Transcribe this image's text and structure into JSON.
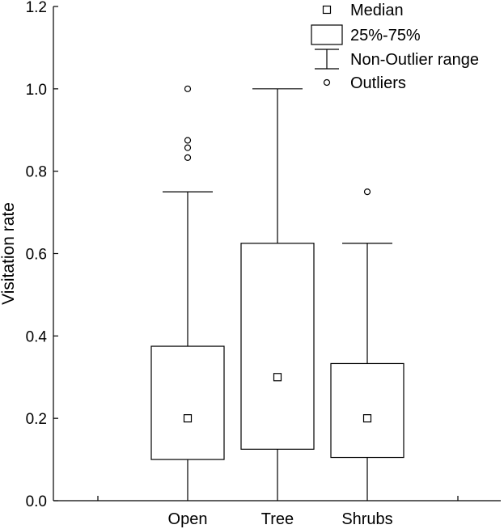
{
  "chart_data": {
    "type": "boxplot",
    "title": "",
    "xlabel": "",
    "ylabel": "Visitation rate",
    "ylim": [
      0,
      1.2
    ],
    "yticks": [
      "0.0",
      "0.2",
      "0.4",
      "0.6",
      "0.8",
      "1.0",
      "1.2"
    ],
    "ytick_values": [
      0,
      0.2,
      0.4,
      0.6,
      0.8,
      1.0,
      1.2
    ],
    "categories": [
      "Open",
      "Tree",
      "Shrubs"
    ],
    "boxes": [
      {
        "category": "Open",
        "median": 0.2,
        "q1": 0.1,
        "q3": 0.375,
        "whisker_low": 0.0,
        "whisker_high": 0.75,
        "outliers": [
          0.833,
          0.857,
          0.875,
          1.0
        ]
      },
      {
        "category": "Tree",
        "median": 0.3,
        "q1": 0.125,
        "q3": 0.625,
        "whisker_low": 0.0,
        "whisker_high": 1.0,
        "outliers": []
      },
      {
        "category": "Shrubs",
        "median": 0.2,
        "q1": 0.105,
        "q3": 0.333,
        "whisker_low": 0.0,
        "whisker_high": 0.625,
        "outliers": [
          0.75
        ]
      }
    ],
    "legend": {
      "position": "top-right",
      "items": [
        {
          "symbol": "median-square",
          "label": "Median"
        },
        {
          "symbol": "box",
          "label": "25%-75%"
        },
        {
          "symbol": "whisker",
          "label": "Non-Outlier range"
        },
        {
          "symbol": "outlier-circle",
          "label": "Outliers"
        }
      ]
    },
    "grid": false,
    "colors": {
      "stroke": "#000000",
      "background": "#ffffff"
    }
  }
}
